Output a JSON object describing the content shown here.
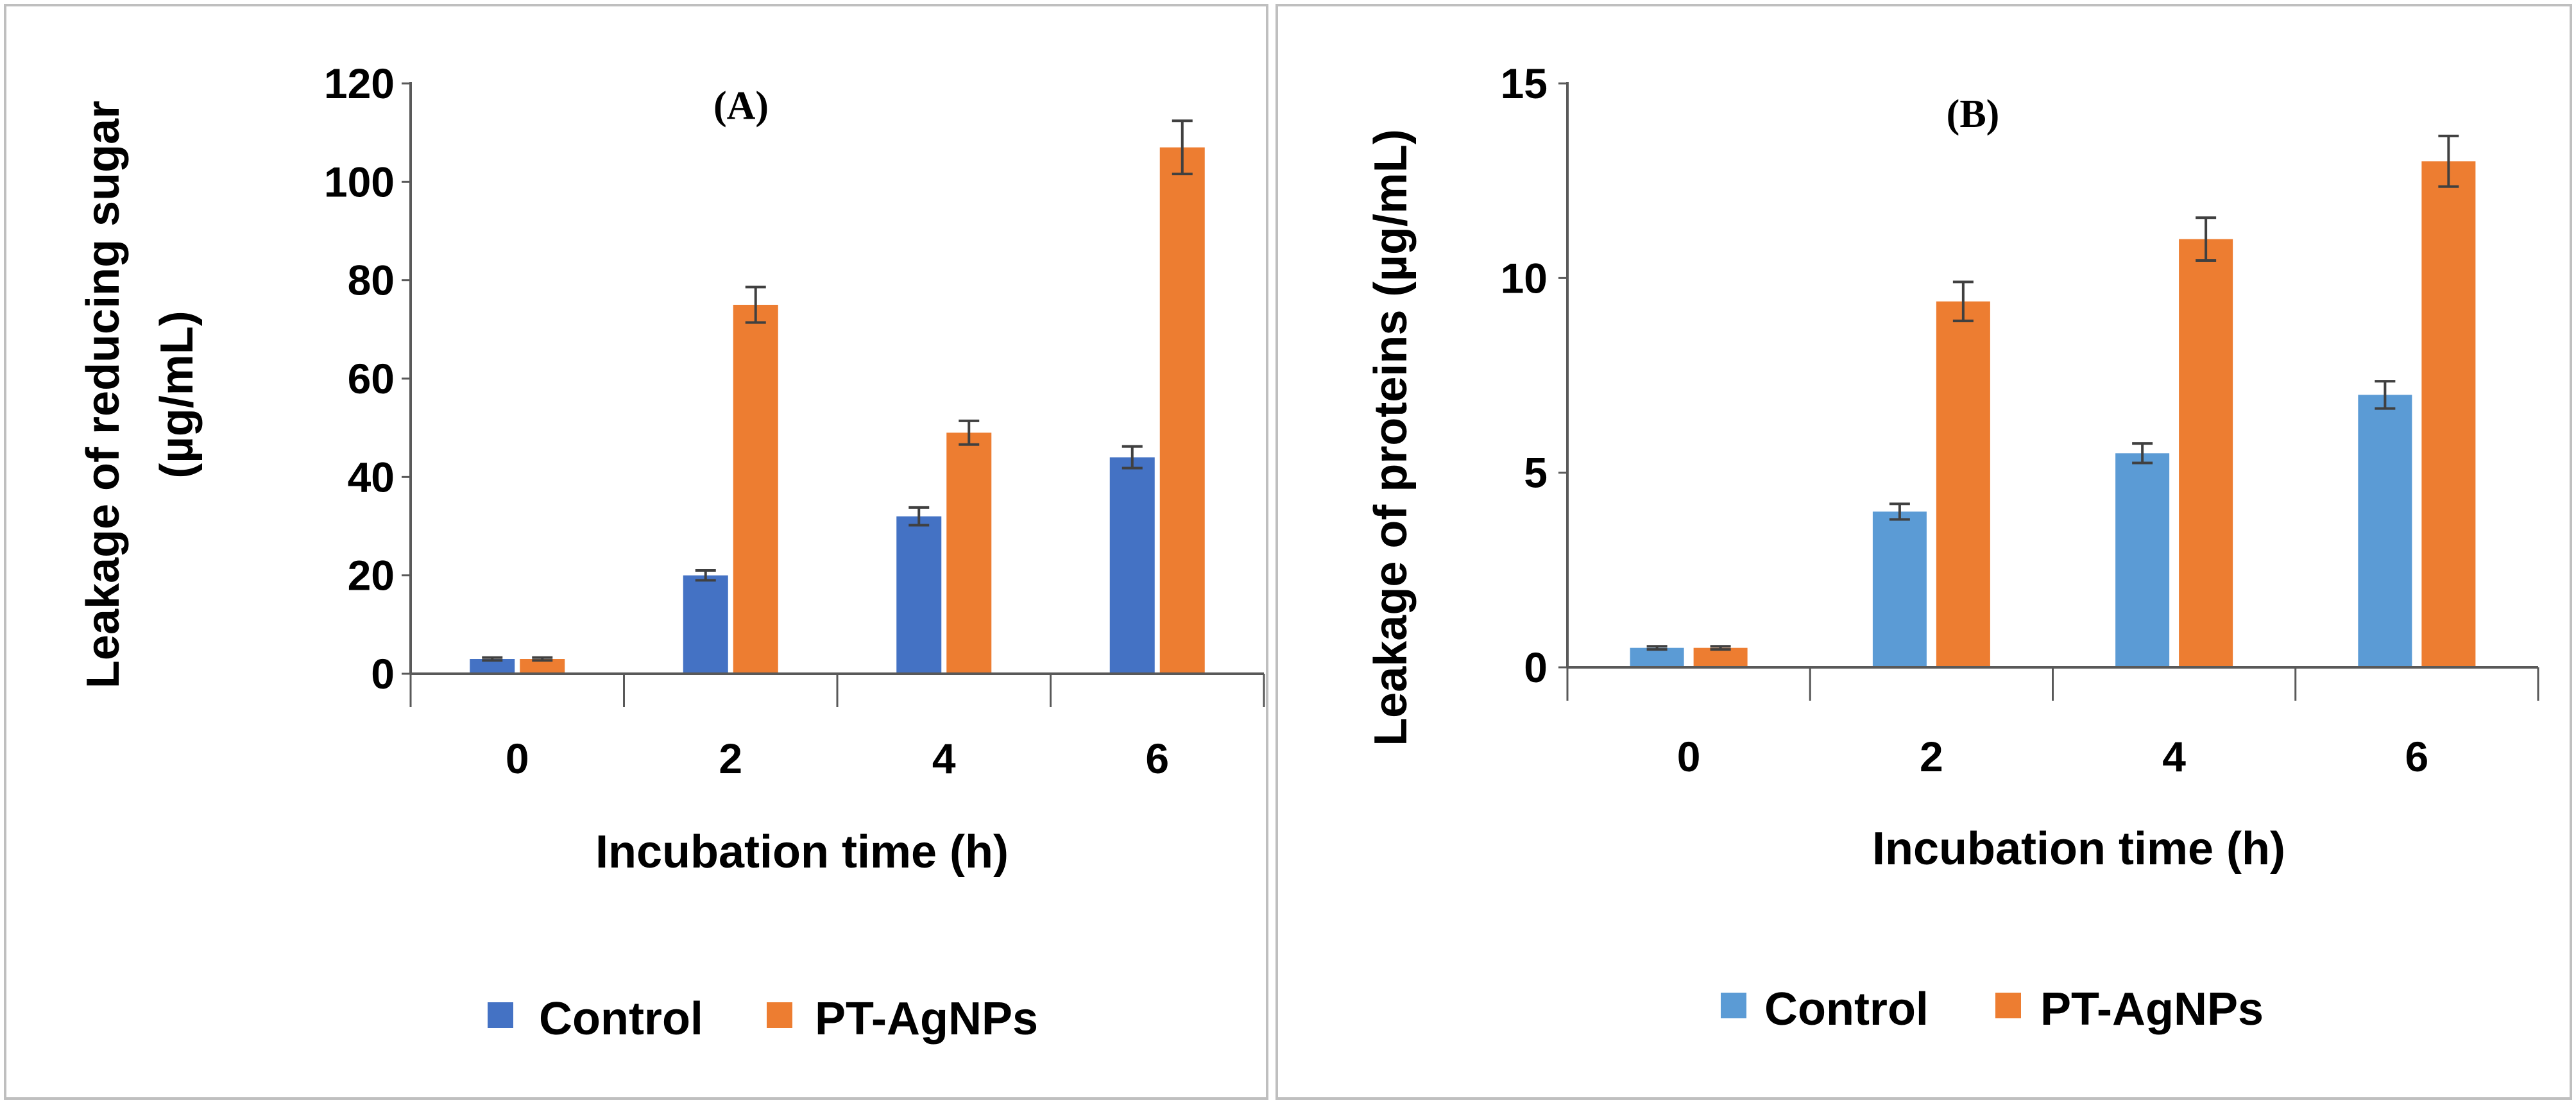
{
  "chart_data": [
    {
      "type": "bar",
      "panel_label": "(A)",
      "xlabel": "Incubation time (h)",
      "ylabel_lines": [
        "Leakage of reducing sugar",
        "(µg/mL)"
      ],
      "categories": [
        "0",
        "2",
        "4",
        "6"
      ],
      "ylim": [
        0,
        120
      ],
      "yticks": [
        0,
        20,
        40,
        60,
        80,
        100,
        120
      ],
      "grid": false,
      "legend_position": "bottom",
      "series": [
        {
          "name": "Control",
          "color": "#4472C4",
          "values": [
            3,
            20,
            32,
            44
          ],
          "errors": [
            0.3,
            1,
            1.8,
            2.2
          ]
        },
        {
          "name": "PT-AgNPs",
          "color": "#ED7D31",
          "values": [
            3,
            75,
            49,
            107
          ],
          "errors": [
            0.3,
            3.6,
            2.4,
            5.4
          ]
        }
      ]
    },
    {
      "type": "bar",
      "panel_label": "(B)",
      "xlabel": "Incubation time (h)",
      "ylabel_lines": [
        "Leakage of proteins (µg/mL)"
      ],
      "categories": [
        "0",
        "2",
        "4",
        "6"
      ],
      "ylim": [
        0,
        15
      ],
      "yticks": [
        0,
        5,
        10,
        15
      ],
      "grid": false,
      "legend_position": "bottom",
      "series": [
        {
          "name": "Control",
          "color": "#5B9BD5",
          "values": [
            0.5,
            4,
            5.5,
            7
          ],
          "errors": [
            0.04,
            0.2,
            0.25,
            0.35
          ]
        },
        {
          "name": "PT-AgNPs",
          "color": "#ED7D31",
          "values": [
            0.5,
            9.4,
            11,
            13
          ],
          "errors": [
            0.04,
            0.5,
            0.55,
            0.65
          ]
        }
      ]
    }
  ]
}
